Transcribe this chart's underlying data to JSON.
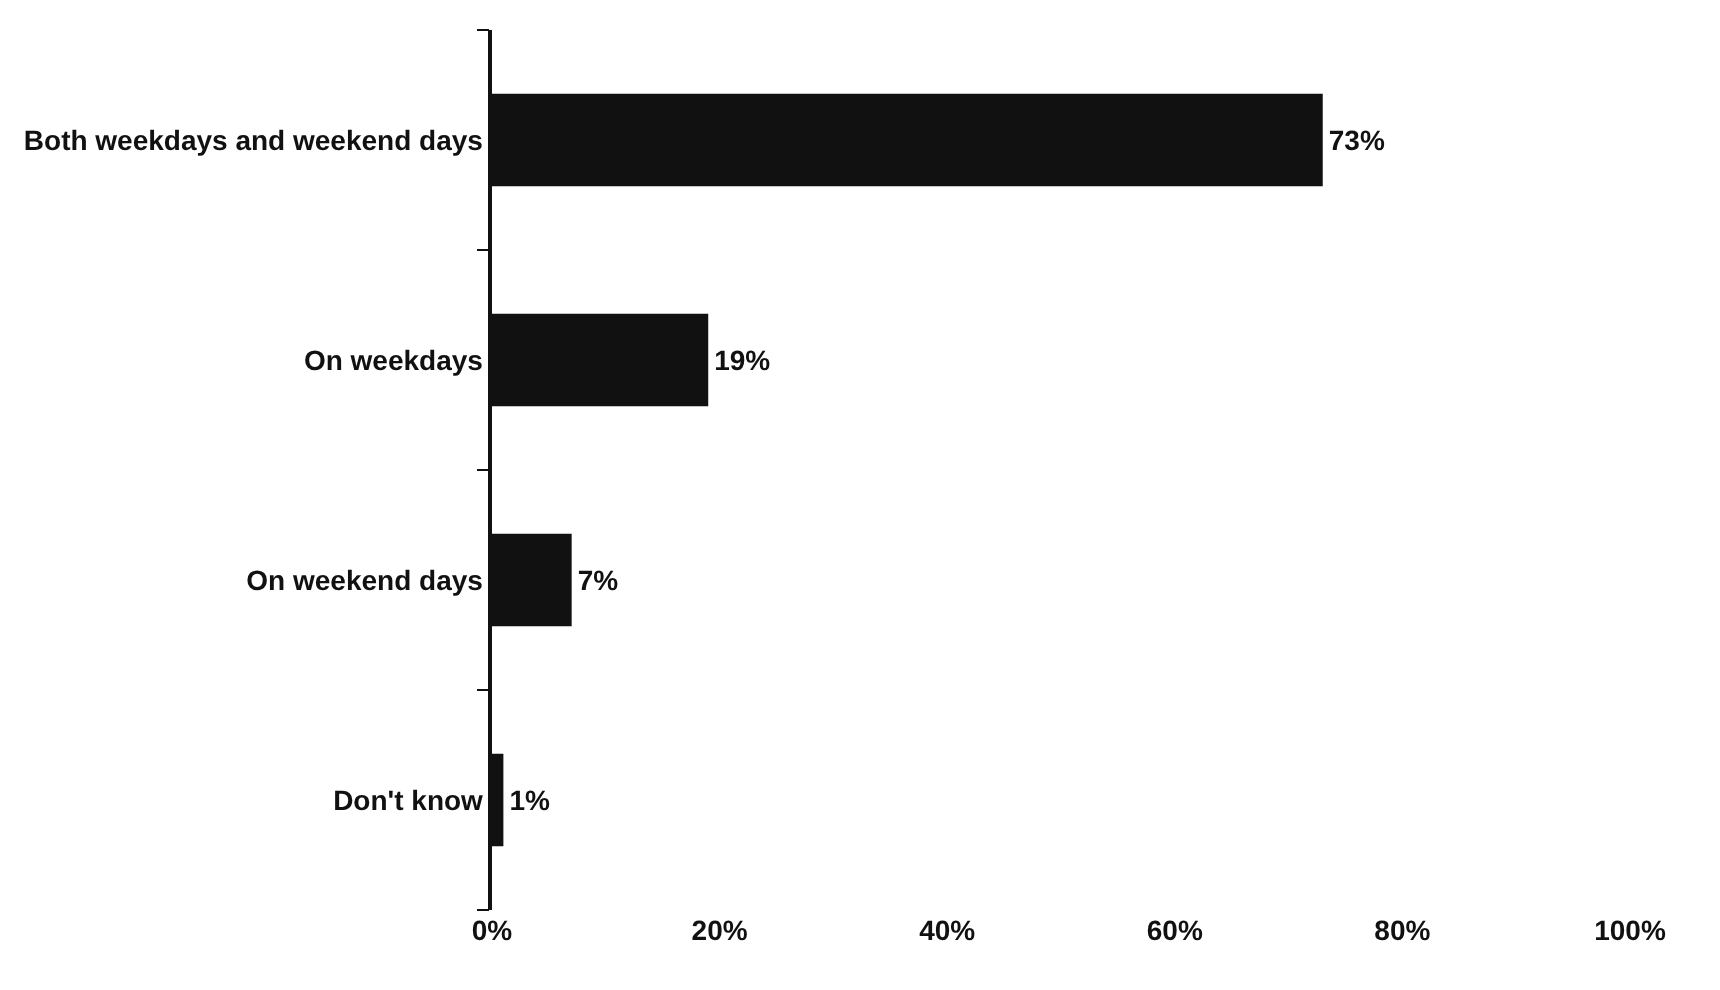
{
  "chart_data": {
    "type": "bar",
    "orientation": "horizontal",
    "categories": [
      "Both weekdays and weekend days",
      "On weekdays",
      "On weekend days",
      "Don't know"
    ],
    "values": [
      73,
      19,
      7,
      1
    ],
    "value_labels": [
      "73%",
      "19%",
      "7%",
      "1%"
    ],
    "color": "#111111",
    "xlim": [
      0,
      100
    ],
    "xticks": [
      {
        "value": 0,
        "label": "0%"
      },
      {
        "value": 20,
        "label": "20%"
      },
      {
        "value": 40,
        "label": "40%"
      },
      {
        "value": 60,
        "label": "60%"
      },
      {
        "value": 80,
        "label": "80%"
      },
      {
        "value": 100,
        "label": "100%"
      }
    ]
  }
}
